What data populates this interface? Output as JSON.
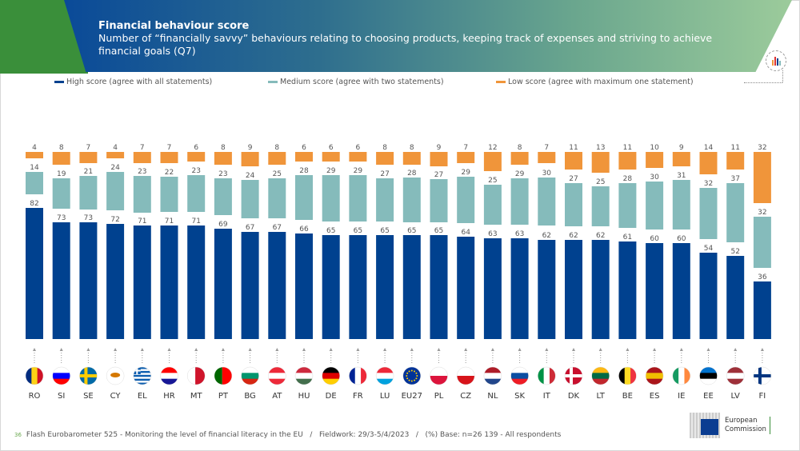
{
  "header": {
    "title": "Financial behaviour score",
    "subtitle": "Number of “financially savvy” behaviours relating to choosing products, keeping track of expenses and striving to achieve financial goals (Q7)"
  },
  "footer": {
    "page": "36",
    "text": "Flash Eurobarometer 525 - Monitoring the level of financial literacy in the EU   /   Fieldwork: 29/3-5/4/2023   /   (%) Base: n=26 139 - All respondents",
    "logo_text": [
      "European",
      "Commission"
    ]
  },
  "chart_data": {
    "type": "bar",
    "stacked": true,
    "categories": [
      "RO",
      "SI",
      "SE",
      "CY",
      "EL",
      "HR",
      "MT",
      "PT",
      "BG",
      "AT",
      "HU",
      "DE",
      "FR",
      "LU",
      "EU27",
      "PL",
      "CZ",
      "NL",
      "SK",
      "IT",
      "DK",
      "LT",
      "BE",
      "ES",
      "IE",
      "EE",
      "LV",
      "FI"
    ],
    "series": [
      {
        "name": "High score (agree with all statements)",
        "color": "#00418f",
        "values": [
          82,
          73,
          73,
          72,
          71,
          71,
          71,
          69,
          67,
          67,
          66,
          65,
          65,
          65,
          65,
          65,
          64,
          63,
          63,
          62,
          62,
          62,
          61,
          60,
          60,
          54,
          52,
          36
        ]
      },
      {
        "name": "Medium score (agree with two statements)",
        "color": "#85bbbb",
        "values": [
          14,
          19,
          21,
          24,
          23,
          22,
          23,
          23,
          24,
          25,
          28,
          29,
          29,
          27,
          28,
          27,
          29,
          25,
          29,
          30,
          27,
          25,
          28,
          30,
          31,
          32,
          37,
          32
        ]
      },
      {
        "name": "Low score (agree with maximum one statement)",
        "color": "#f0953a",
        "values": [
          4,
          8,
          7,
          4,
          7,
          7,
          6,
          8,
          9,
          8,
          6,
          6,
          6,
          8,
          8,
          9,
          7,
          12,
          8,
          7,
          11,
          13,
          11,
          10,
          9,
          14,
          11,
          32
        ]
      }
    ],
    "legend_position": "top",
    "grid": false,
    "unit": "%"
  },
  "flags": {
    "RO": [
      "v",
      "#002b7f",
      "#fcd116",
      "#ce1126"
    ],
    "SI": [
      "h",
      "#fff",
      "#0000ff",
      "#ff0000"
    ],
    "SE": [
      "cross",
      "#006aa7",
      "#fecc00"
    ],
    "CY": [
      "plain",
      "#fff",
      "#d57800"
    ],
    "EL": [
      "stripes",
      "#0d5eaf",
      "#fff"
    ],
    "HR": [
      "h",
      "#ff0000",
      "#fff",
      "#171796"
    ],
    "MT": [
      "v2",
      "#fff",
      "#cf142b"
    ],
    "PT": [
      "v2",
      "#006600",
      "#ff0000"
    ],
    "BG": [
      "h",
      "#fff",
      "#00966e",
      "#d62612"
    ],
    "AT": [
      "h",
      "#ed2939",
      "#fff",
      "#ed2939"
    ],
    "HU": [
      "h",
      "#cd2a3e",
      "#fff",
      "#436f4d"
    ],
    "DE": [
      "h",
      "#000",
      "#dd0000",
      "#ffce00"
    ],
    "FR": [
      "v",
      "#002395",
      "#fff",
      "#ed2939"
    ],
    "LU": [
      "h",
      "#ed2939",
      "#fff",
      "#00a1de"
    ],
    "EU27": [
      "plain",
      "#003399",
      "#ffcc00"
    ],
    "PL": [
      "h2",
      "#fff",
      "#dc143c"
    ],
    "CZ": [
      "h2",
      "#fff",
      "#d7141a"
    ],
    "NL": [
      "h",
      "#ae1c28",
      "#fff",
      "#21468b"
    ],
    "SK": [
      "h",
      "#fff",
      "#0b4ea2",
      "#ee1c25"
    ],
    "IT": [
      "v",
      "#009246",
      "#fff",
      "#ce2b37"
    ],
    "DK": [
      "cross",
      "#c8102e",
      "#fff"
    ],
    "LT": [
      "h",
      "#fdb913",
      "#006a44",
      "#c1272d"
    ],
    "BE": [
      "v",
      "#000",
      "#fdda24",
      "#ef3340"
    ],
    "ES": [
      "h",
      "#aa151b",
      "#f1bf00",
      "#aa151b"
    ],
    "IE": [
      "v",
      "#169b62",
      "#fff",
      "#ff883e"
    ],
    "EE": [
      "h",
      "#0072ce",
      "#000",
      "#fff"
    ],
    "LV": [
      "h",
      "#9e3039",
      "#fff",
      "#9e3039"
    ],
    "FI": [
      "cross",
      "#fff",
      "#003580"
    ]
  }
}
